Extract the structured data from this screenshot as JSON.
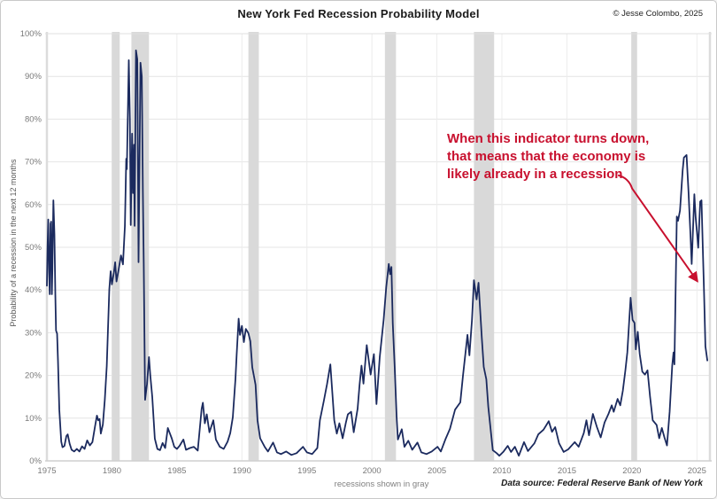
{
  "header": {
    "title": "New York Fed Recession Probability Model",
    "copyright": "© Jesse Colombo, 2025"
  },
  "footer": {
    "caption": "recessions shown in gray",
    "source": "Data source: Federal Reserve Bank of New York"
  },
  "annotation": {
    "lines": [
      "When this indicator turns down,",
      "that means that the economy is",
      "likely already in a recession"
    ],
    "color": "#c8102e",
    "arrow_from": [
      2019.2,
      65.0
    ],
    "arrow_to": [
      2025.05,
      42.0
    ]
  },
  "chart_data": {
    "type": "line",
    "title": "New York Fed Recession Probability Model",
    "xlabel": "",
    "ylabel": "Probability of a recession in the next 12 months",
    "xlim": [
      1975,
      2026
    ],
    "ylim": [
      0,
      100
    ],
    "xticks": [
      1975,
      1980,
      1985,
      1990,
      1995,
      2000,
      2005,
      2010,
      2015,
      2020,
      2025
    ],
    "yticks": [
      0,
      10,
      20,
      30,
      40,
      50,
      60,
      70,
      80,
      90,
      100
    ],
    "ytick_suffix": "%",
    "grid": true,
    "legend": "none",
    "line_color": "#1b2a5e",
    "recession_band_color": "#d9d9d9",
    "recessions_note": "shaded bands are U.S. recessions",
    "recessions": [
      [
        1980.0,
        1980.6
      ],
      [
        1981.5,
        1982.85
      ],
      [
        1990.5,
        1991.3
      ],
      [
        2001.0,
        2001.85
      ],
      [
        2007.85,
        2009.4
      ],
      [
        2019.95,
        2020.4
      ]
    ],
    "series": [
      {
        "name": "Probability of recession in the next 12 months",
        "points": [
          [
            1975.0,
            41
          ],
          [
            1975.05,
            50
          ],
          [
            1975.1,
            56.5
          ],
          [
            1975.17,
            44
          ],
          [
            1975.22,
            39
          ],
          [
            1975.28,
            55.5
          ],
          [
            1975.33,
            56
          ],
          [
            1975.38,
            39
          ],
          [
            1975.42,
            45
          ],
          [
            1975.5,
            61
          ],
          [
            1975.58,
            53
          ],
          [
            1975.65,
            39
          ],
          [
            1975.7,
            30.5
          ],
          [
            1975.78,
            29.8
          ],
          [
            1975.85,
            23.5
          ],
          [
            1975.95,
            12
          ],
          [
            1976.1,
            4.5
          ],
          [
            1976.2,
            3.2
          ],
          [
            1976.35,
            3.5
          ],
          [
            1976.5,
            5.8
          ],
          [
            1976.6,
            6.2
          ],
          [
            1976.75,
            4.0
          ],
          [
            1976.9,
            2.6
          ],
          [
            1977.1,
            2.2
          ],
          [
            1977.3,
            2.8
          ],
          [
            1977.5,
            2.2
          ],
          [
            1977.7,
            3.4
          ],
          [
            1977.9,
            2.8
          ],
          [
            1978.1,
            4.8
          ],
          [
            1978.3,
            3.6
          ],
          [
            1978.5,
            4.4
          ],
          [
            1978.7,
            8.0
          ],
          [
            1978.85,
            10.6
          ],
          [
            1978.95,
            9.5
          ],
          [
            1979.05,
            9.8
          ],
          [
            1979.15,
            6.4
          ],
          [
            1979.3,
            8.5
          ],
          [
            1979.45,
            14.3
          ],
          [
            1979.6,
            22.2
          ],
          [
            1979.8,
            40.2
          ],
          [
            1979.9,
            44.4
          ],
          [
            1980.0,
            41.3
          ],
          [
            1980.15,
            44
          ],
          [
            1980.25,
            46.5
          ],
          [
            1980.35,
            42
          ],
          [
            1980.5,
            44.5
          ],
          [
            1980.7,
            48.1
          ],
          [
            1980.85,
            46
          ],
          [
            1981.0,
            55
          ],
          [
            1981.1,
            70.7
          ],
          [
            1981.15,
            68.3
          ],
          [
            1981.3,
            93.8
          ],
          [
            1981.38,
            80.3
          ],
          [
            1981.45,
            55.2
          ],
          [
            1981.55,
            76.6
          ],
          [
            1981.62,
            62.7
          ],
          [
            1981.7,
            74
          ],
          [
            1981.75,
            55
          ],
          [
            1981.85,
            96.1
          ],
          [
            1981.95,
            94
          ],
          [
            1982.05,
            46.5
          ],
          [
            1982.2,
            93.2
          ],
          [
            1982.3,
            90
          ],
          [
            1982.38,
            63
          ],
          [
            1982.45,
            46
          ],
          [
            1982.55,
            14.3
          ],
          [
            1982.7,
            18
          ],
          [
            1982.85,
            24.3
          ],
          [
            1982.95,
            20
          ],
          [
            1983.1,
            15
          ],
          [
            1983.3,
            5.2
          ],
          [
            1983.5,
            2.8
          ],
          [
            1983.7,
            2.5
          ],
          [
            1983.9,
            4.2
          ],
          [
            1984.1,
            3.0
          ],
          [
            1984.3,
            7.7
          ],
          [
            1984.45,
            6.5
          ],
          [
            1984.6,
            5.3
          ],
          [
            1984.8,
            3.3
          ],
          [
            1985.0,
            2.8
          ],
          [
            1985.2,
            3.5
          ],
          [
            1985.5,
            5.0
          ],
          [
            1985.7,
            2.6
          ],
          [
            1986.0,
            3.0
          ],
          [
            1986.3,
            3.3
          ],
          [
            1986.6,
            2.4
          ],
          [
            1986.9,
            12.2
          ],
          [
            1987.0,
            13.6
          ],
          [
            1987.15,
            8.8
          ],
          [
            1987.3,
            10.9
          ],
          [
            1987.5,
            6.7
          ],
          [
            1987.8,
            9.5
          ],
          [
            1988.0,
            5.0
          ],
          [
            1988.3,
            3.3
          ],
          [
            1988.6,
            2.8
          ],
          [
            1988.9,
            4.5
          ],
          [
            1989.1,
            6.5
          ],
          [
            1989.3,
            10.2
          ],
          [
            1989.5,
            19.2
          ],
          [
            1989.6,
            25.0
          ],
          [
            1989.75,
            33.3
          ],
          [
            1989.85,
            29.5
          ],
          [
            1990.0,
            31.6
          ],
          [
            1990.15,
            27.8
          ],
          [
            1990.3,
            30.9
          ],
          [
            1990.5,
            29.9
          ],
          [
            1990.65,
            28
          ],
          [
            1990.8,
            21.9
          ],
          [
            1990.95,
            19.5
          ],
          [
            1991.05,
            17.8
          ],
          [
            1991.2,
            9.5
          ],
          [
            1991.4,
            5.3
          ],
          [
            1991.75,
            3.3
          ],
          [
            1992.0,
            2.2
          ],
          [
            1992.4,
            4.3
          ],
          [
            1992.7,
            2.0
          ],
          [
            1993.0,
            1.6
          ],
          [
            1993.4,
            2.2
          ],
          [
            1993.8,
            1.4
          ],
          [
            1994.2,
            1.8
          ],
          [
            1994.7,
            3.3
          ],
          [
            1995.0,
            2.0
          ],
          [
            1995.4,
            1.6
          ],
          [
            1995.8,
            3.0
          ],
          [
            1996.0,
            9.5
          ],
          [
            1996.3,
            14.0
          ],
          [
            1996.55,
            18
          ],
          [
            1996.8,
            22.6
          ],
          [
            1997.1,
            9.5
          ],
          [
            1997.3,
            6.4
          ],
          [
            1997.5,
            8.8
          ],
          [
            1997.75,
            5.3
          ],
          [
            1998.0,
            9.0
          ],
          [
            1998.15,
            10.9
          ],
          [
            1998.4,
            11.5
          ],
          [
            1998.6,
            6.7
          ],
          [
            1998.9,
            12.2
          ],
          [
            1999.05,
            17.8
          ],
          [
            1999.2,
            22.3
          ],
          [
            1999.35,
            18.1
          ],
          [
            1999.6,
            27.1
          ],
          [
            1999.9,
            20.2
          ],
          [
            2000.15,
            25.0
          ],
          [
            2000.35,
            13.3
          ],
          [
            2000.6,
            24.3
          ],
          [
            2000.9,
            33.0
          ],
          [
            2001.1,
            40.6
          ],
          [
            2001.3,
            46.1
          ],
          [
            2001.4,
            43.7
          ],
          [
            2001.5,
            45.4
          ],
          [
            2001.6,
            32.3
          ],
          [
            2001.75,
            21.9
          ],
          [
            2001.9,
            10.2
          ],
          [
            2002.0,
            5.0
          ],
          [
            2002.3,
            7.4
          ],
          [
            2002.5,
            3.3
          ],
          [
            2002.8,
            4.7
          ],
          [
            2003.1,
            2.6
          ],
          [
            2003.5,
            4.3
          ],
          [
            2003.8,
            2.0
          ],
          [
            2004.2,
            1.6
          ],
          [
            2004.6,
            2.2
          ],
          [
            2005.05,
            3.3
          ],
          [
            2005.3,
            2.2
          ],
          [
            2005.65,
            5.0
          ],
          [
            2006.0,
            7.5
          ],
          [
            2006.4,
            12
          ],
          [
            2006.8,
            13.7
          ],
          [
            2007.0,
            19.9
          ],
          [
            2007.35,
            29.5
          ],
          [
            2007.5,
            24.7
          ],
          [
            2007.7,
            33
          ],
          [
            2007.85,
            42.3
          ],
          [
            2008.05,
            37.8
          ],
          [
            2008.2,
            41.7
          ],
          [
            2008.45,
            28.8
          ],
          [
            2008.6,
            22
          ],
          [
            2008.8,
            19.1
          ],
          [
            2008.95,
            12.7
          ],
          [
            2009.3,
            2.5
          ],
          [
            2009.6,
            1.8
          ],
          [
            2009.8,
            1.2
          ],
          [
            2010.1,
            2.1
          ],
          [
            2010.45,
            3.5
          ],
          [
            2010.7,
            2.1
          ],
          [
            2011.0,
            3.3
          ],
          [
            2011.3,
            1.2
          ],
          [
            2011.7,
            4.4
          ],
          [
            2012.0,
            2.3
          ],
          [
            2012.5,
            4.1
          ],
          [
            2012.8,
            6.2
          ],
          [
            2013.2,
            7.3
          ],
          [
            2013.4,
            8.3
          ],
          [
            2013.6,
            9.3
          ],
          [
            2013.85,
            6.8
          ],
          [
            2014.1,
            7.9
          ],
          [
            2014.4,
            4.1
          ],
          [
            2014.75,
            2.1
          ],
          [
            2015.1,
            2.7
          ],
          [
            2015.6,
            4.4
          ],
          [
            2015.9,
            3.3
          ],
          [
            2016.3,
            6.5
          ],
          [
            2016.5,
            9.5
          ],
          [
            2016.7,
            6.0
          ],
          [
            2017.0,
            11.0
          ],
          [
            2017.3,
            8.0
          ],
          [
            2017.6,
            5.5
          ],
          [
            2017.9,
            9.0
          ],
          [
            2018.2,
            11.0
          ],
          [
            2018.45,
            13.0
          ],
          [
            2018.6,
            11.5
          ],
          [
            2018.9,
            14.5
          ],
          [
            2019.1,
            13.0
          ],
          [
            2019.3,
            16.4
          ],
          [
            2019.5,
            21.2
          ],
          [
            2019.65,
            25.4
          ],
          [
            2019.8,
            33
          ],
          [
            2019.9,
            38.2
          ],
          [
            2020.05,
            33
          ],
          [
            2020.2,
            32.3
          ],
          [
            2020.3,
            26.1
          ],
          [
            2020.45,
            30.2
          ],
          [
            2020.6,
            25
          ],
          [
            2020.8,
            20.9
          ],
          [
            2021.0,
            20.2
          ],
          [
            2021.2,
            21.2
          ],
          [
            2021.4,
            15.0
          ],
          [
            2021.6,
            9.5
          ],
          [
            2021.9,
            8.4
          ],
          [
            2022.1,
            5.3
          ],
          [
            2022.3,
            7.7
          ],
          [
            2022.5,
            5.5
          ],
          [
            2022.7,
            3.6
          ],
          [
            2022.9,
            11.5
          ],
          [
            2023.1,
            22.3
          ],
          [
            2023.2,
            25.4
          ],
          [
            2023.27,
            22.6
          ],
          [
            2023.45,
            57.2
          ],
          [
            2023.55,
            56.2
          ],
          [
            2023.7,
            58.6
          ],
          [
            2023.9,
            68
          ],
          [
            2024.0,
            71.0
          ],
          [
            2024.2,
            71.6
          ],
          [
            2024.35,
            63.1
          ],
          [
            2024.5,
            53.0
          ],
          [
            2024.6,
            46.1
          ],
          [
            2024.8,
            62.4
          ],
          [
            2024.9,
            57.2
          ],
          [
            2025.0,
            53.7
          ],
          [
            2025.1,
            49.9
          ],
          [
            2025.25,
            60.7
          ],
          [
            2025.35,
            61.0
          ],
          [
            2025.45,
            50.3
          ],
          [
            2025.55,
            39.2
          ],
          [
            2025.65,
            26.8
          ],
          [
            2025.8,
            23.5
          ]
        ]
      }
    ]
  }
}
